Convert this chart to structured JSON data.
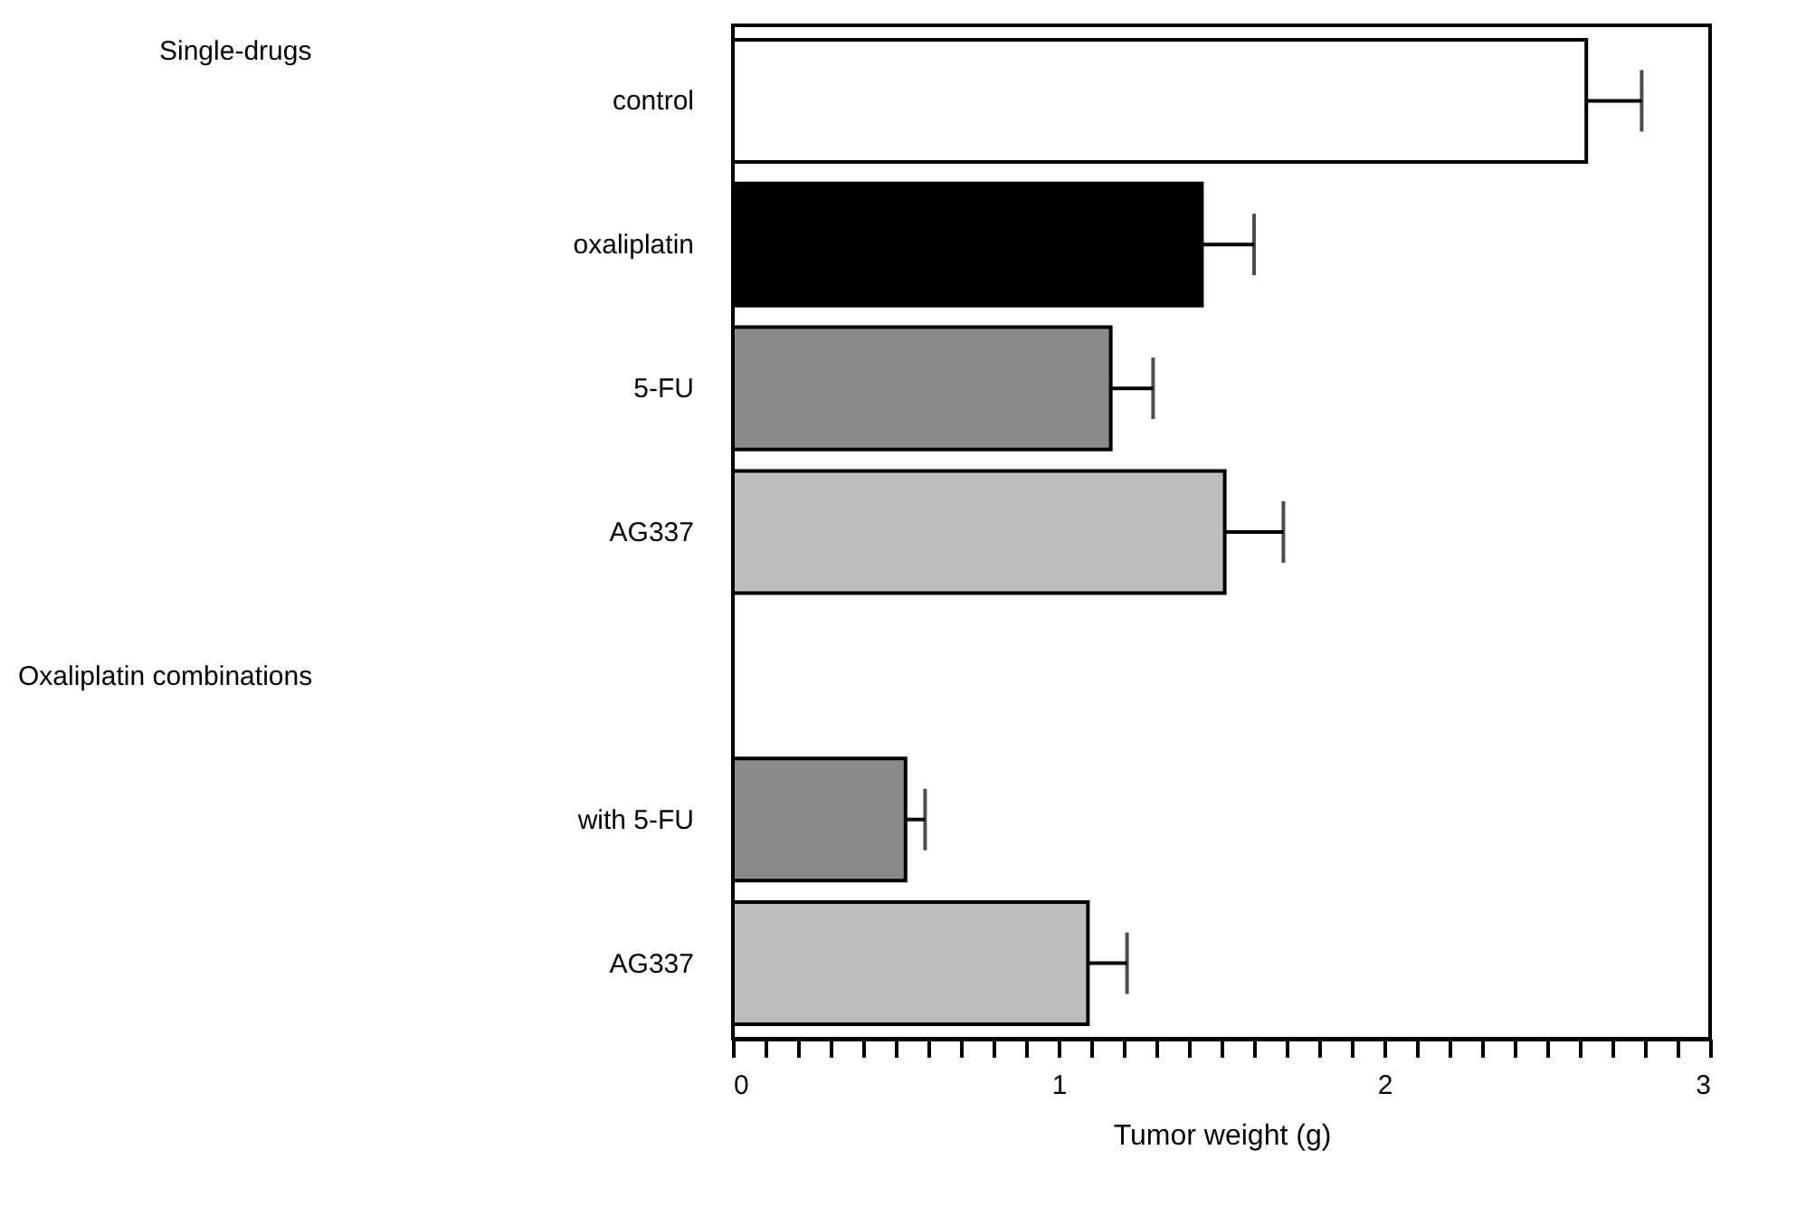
{
  "chart_data": {
    "type": "bar",
    "orientation": "horizontal",
    "categories": [
      "control",
      "oxaliplatin",
      "5-FU",
      "AG337",
      null,
      "with 5-FU",
      "AG337"
    ],
    "values": [
      2.62,
      1.44,
      1.16,
      1.51,
      null,
      0.53,
      1.09
    ],
    "errors": [
      0.17,
      0.16,
      0.13,
      0.18,
      null,
      0.06,
      0.12
    ],
    "colors": [
      "#ffffff",
      "#000000",
      "#8a8a8a",
      "#bdbdbd",
      "#ffffff",
      "#8a8a8a",
      "#bdbdbd"
    ],
    "xlabel": "Tumor weight (g)",
    "xlim": [
      0,
      3
    ],
    "xticks": [
      0,
      {
        "value": 0.1,
        "label": null
      },
      {
        "value": 0.2,
        "label": null
      },
      {
        "value": 0.3,
        "label": null
      },
      {
        "value": 0.4,
        "label": null
      },
      {
        "value": 0.5,
        "label": null
      },
      {
        "value": 0.6,
        "label": null
      },
      {
        "value": 0.7,
        "label": null
      },
      {
        "value": 0.8,
        "label": null
      },
      {
        "value": 0.9,
        "label": null
      },
      1,
      {
        "value": 1.1,
        "label": null
      },
      {
        "value": 1.2,
        "label": null
      },
      {
        "value": 1.3,
        "label": null
      },
      {
        "value": 1.4,
        "label": null
      },
      {
        "value": 1.5,
        "label": null
      },
      {
        "value": 1.6,
        "label": null
      },
      {
        "value": 1.7,
        "label": null
      },
      {
        "value": 1.8,
        "label": null
      },
      {
        "value": 1.9,
        "label": null
      },
      2,
      {
        "value": 2.1,
        "label": null
      },
      {
        "value": 2.2,
        "label": null
      },
      {
        "value": 2.3,
        "label": null
      },
      {
        "value": 2.4,
        "label": null
      },
      {
        "value": 2.5,
        "label": null
      },
      {
        "value": 2.6,
        "label": null
      },
      {
        "value": 2.7,
        "label": null
      },
      {
        "value": 2.8,
        "label": null
      },
      {
        "value": 2.9,
        "label": null
      },
      3
    ],
    "annotations": [
      "Single-drugs",
      "Oxaliplatin combinations"
    ],
    "grid": false
  }
}
